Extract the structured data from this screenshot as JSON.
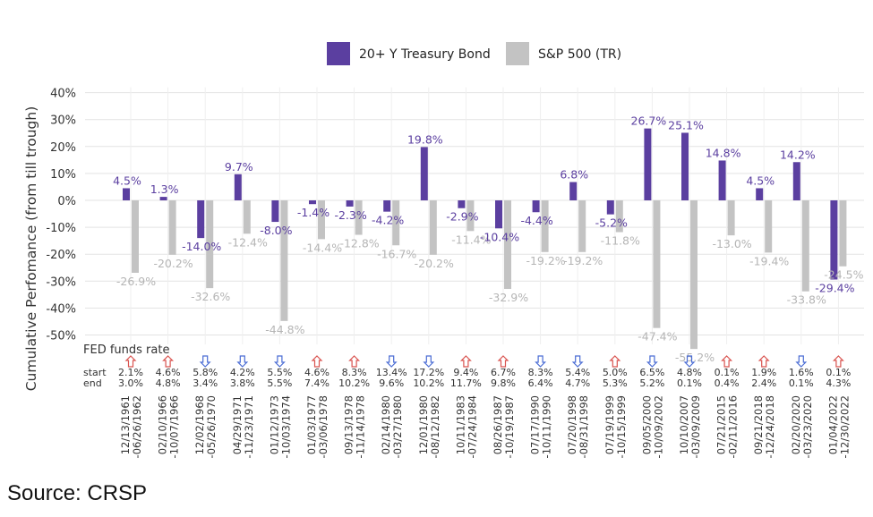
{
  "chart_data": {
    "type": "bar",
    "ylabel": "Cumulative Perfomance (from till trough)",
    "ylim": [
      -0.55,
      0.4
    ],
    "yticks": [
      "40%",
      "30%",
      "20%",
      "10%",
      "0%",
      "-10%",
      "-20%",
      "-30%",
      "-40%",
      "-50%"
    ],
    "yticks_values": [
      0.4,
      0.3,
      0.2,
      0.1,
      0,
      -0.1,
      -0.2,
      -0.3,
      -0.4,
      -0.5
    ],
    "grid": true,
    "legend_position": "top-center",
    "categories": [
      "12/13/1961 -06/26/1962",
      "02/10/1966 -10/07/1966",
      "12/02/1968 -05/26/1970",
      "04/29/1971 -11/23/1971",
      "01/12/1973 -10/03/1974",
      "01/03/1977 -03/06/1978",
      "09/13/1978 -11/14/1978",
      "02/14/1980 -03/27/1980",
      "12/01/1980 -08/12/1982",
      "10/11/1983 -07/24/1984",
      "08/26/1987 -10/19/1987",
      "07/17/1990 -10/11/1990",
      "07/20/1998 -08/31/1998",
      "07/19/1999 -10/15/1999",
      "09/05/2000 -10/09/2002",
      "10/10/2007 -03/09/2009",
      "07/21/2015 -02/11/2016",
      "09/21/2018 -12/24/2018",
      "02/20/2020 -03/23/2020",
      "01/04/2022 -12/30/2022"
    ],
    "series": [
      {
        "name": "20+ Y Treasury Bond",
        "color": "#5b3fa0",
        "values": [
          0.045,
          0.013,
          -0.14,
          0.097,
          -0.08,
          -0.014,
          -0.023,
          -0.042,
          0.198,
          -0.029,
          -0.104,
          -0.044,
          0.068,
          -0.052,
          0.267,
          0.251,
          0.148,
          0.045,
          0.142,
          -0.294
        ],
        "labels": [
          "4.5%",
          "1.3%",
          "-14.0%",
          "9.7%",
          "-8.0%",
          "-1.4%",
          "-2.3%",
          "-4.2%",
          "19.8%",
          "-2.9%",
          "-10.4%",
          "-4.4%",
          "6.8%",
          "-5.2%",
          "26.7%",
          "25.1%",
          "14.8%",
          "4.5%",
          "14.2%",
          "-29.4%"
        ]
      },
      {
        "name": "S&P 500 (TR)",
        "color": "#c3c3c3",
        "values": [
          -0.269,
          -0.202,
          -0.326,
          -0.124,
          -0.448,
          -0.144,
          -0.128,
          -0.167,
          -0.202,
          -0.114,
          -0.329,
          -0.192,
          -0.192,
          -0.118,
          -0.474,
          -0.552,
          -0.13,
          -0.194,
          -0.338,
          -0.245
        ],
        "labels": [
          "-26.9%",
          "-20.2%",
          "-32.6%",
          "-12.4%",
          "-44.8%",
          "-14.4%",
          "-12.8%",
          "-16.7%",
          "-20.2%",
          "-11.4%",
          "-32.9%",
          "-19.2%",
          "-19.2%",
          "-11.8%",
          "-47.4%",
          "-55.2%",
          "-13.0%",
          "-19.4%",
          "-33.8%",
          "-24.5%"
        ]
      }
    ],
    "fed": {
      "label": "FED funds rate",
      "start_label": "start",
      "end_label": "end",
      "start": [
        "2.1%",
        "4.6%",
        "5.8%",
        "4.2%",
        "5.5%",
        "4.6%",
        "8.3%",
        "13.4%",
        "17.2%",
        "9.4%",
        "6.7%",
        "8.3%",
        "5.4%",
        "5.0%",
        "6.5%",
        "4.8%",
        "0.1%",
        "1.9%",
        "1.6%",
        "0.1%"
      ],
      "end": [
        "3.0%",
        "4.8%",
        "3.4%",
        "3.8%",
        "5.5%",
        "7.4%",
        "10.2%",
        "9.6%",
        "10.2%",
        "11.7%",
        "9.8%",
        "6.4%",
        "4.7%",
        "5.3%",
        "5.2%",
        "0.1%",
        "0.4%",
        "2.4%",
        "0.1%",
        "4.3%"
      ],
      "direction": [
        "up",
        "up",
        "down",
        "down",
        "down",
        "up",
        "up",
        "down",
        "down",
        "up",
        "up",
        "down",
        "down",
        "up",
        "down",
        "down",
        "up",
        "up",
        "down",
        "up"
      ],
      "up_color": "#d9534f",
      "down_color": "#4a6cd4"
    }
  },
  "source": "Source: CRSP"
}
